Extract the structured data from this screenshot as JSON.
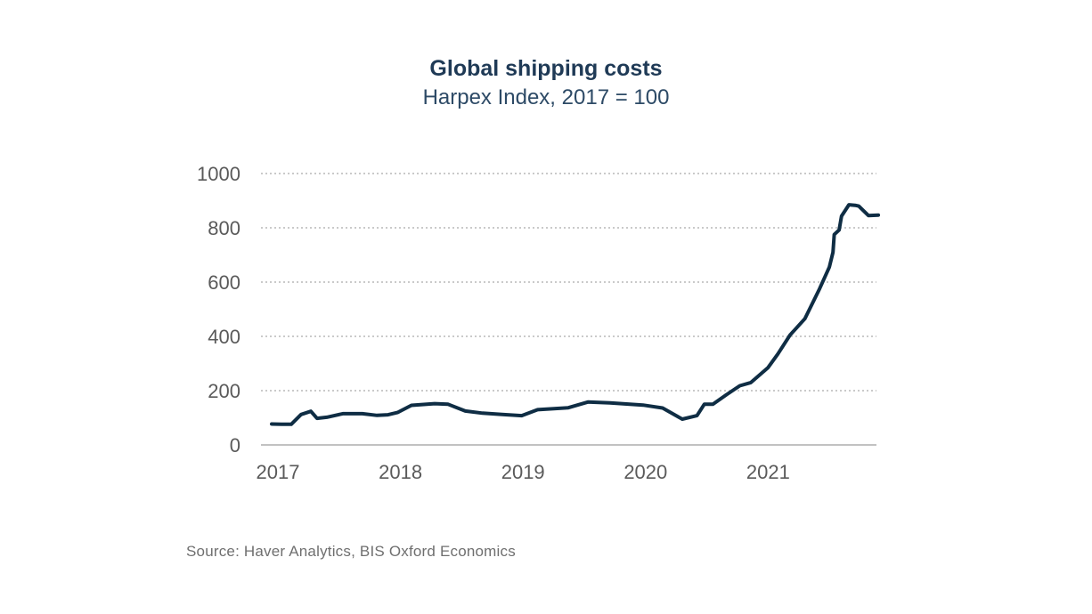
{
  "chart_data": {
    "type": "line",
    "title": "Global shipping costs",
    "subtitle": "Harpex Index, 2017 = 100",
    "source": "Source: Haver Analytics, BIS Oxford Economics",
    "xlabel": "",
    "ylabel": "",
    "ylim": [
      0,
      1000
    ],
    "xlim": [
      2017.0,
      2021.97
    ],
    "yticks": [
      "0",
      "200",
      "400",
      "600",
      "800",
      "1000"
    ],
    "xticks": [
      "2017",
      "2018",
      "2019",
      "2020",
      "2021"
    ],
    "grid": true,
    "line_color": "#0f2d44",
    "series": [
      {
        "x": [
          2017.0,
          2017.08,
          2017.16,
          2017.24,
          2017.32,
          2017.37,
          2017.45,
          2017.58,
          2017.74,
          2017.86,
          2017.95,
          2018.03,
          2018.14,
          2018.33,
          2018.44,
          2018.58,
          2018.72,
          2018.88,
          2019.04,
          2019.17,
          2019.42,
          2019.58,
          2019.76,
          2020.03,
          2020.19,
          2020.35,
          2020.47,
          2020.53,
          2020.6,
          2020.71,
          2020.82,
          2020.91,
          2021.05,
          2021.13,
          2021.23,
          2021.35,
          2021.47,
          2021.55,
          2021.58,
          2021.59,
          2021.63,
          2021.65,
          2021.71,
          2021.76,
          2021.79,
          2021.87,
          2021.95
        ],
        "y": [
          77,
          76,
          76,
          112,
          124,
          98,
          102,
          115,
          115,
          109,
          111,
          120,
          146,
          152,
          150,
          125,
          117,
          112,
          108,
          130,
          137,
          158,
          155,
          147,
          136,
          95,
          108,
          150,
          150,
          185,
          218,
          230,
          285,
          335,
          405,
          465,
          575,
          655,
          710,
          775,
          792,
          843,
          885,
          883,
          880,
          845,
          847
        ]
      }
    ]
  }
}
